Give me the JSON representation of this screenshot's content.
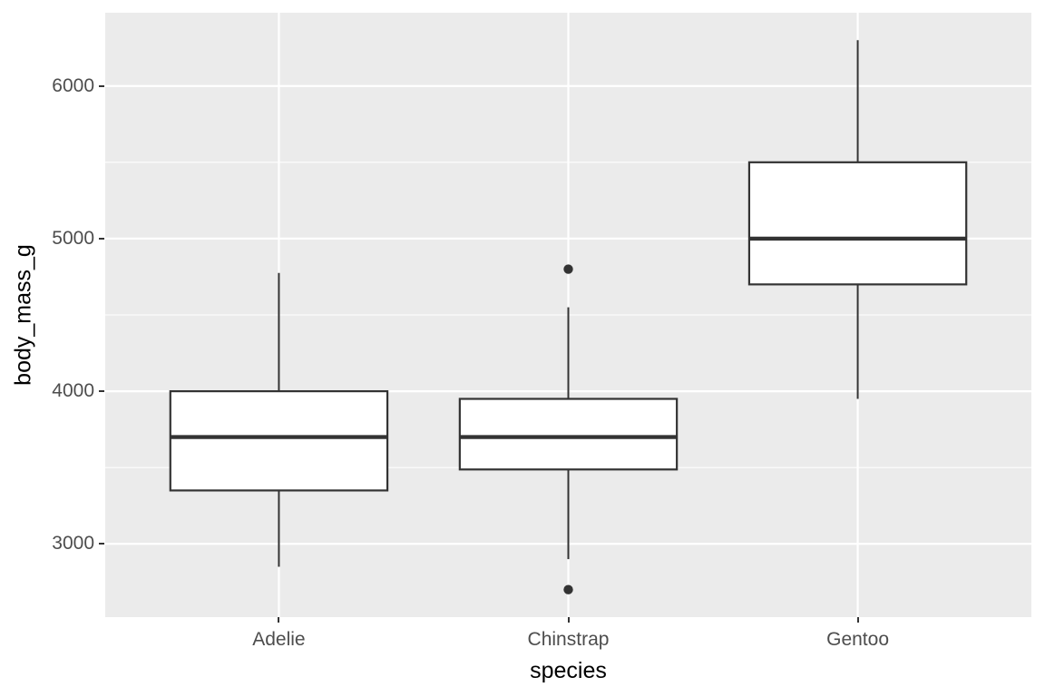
{
  "chart_data": {
    "type": "boxplot",
    "title": "",
    "xlabel": "species",
    "ylabel": "body_mass_g",
    "categories": [
      "Adelie",
      "Chinstrap",
      "Gentoo"
    ],
    "y_major_ticks": [
      3000,
      4000,
      5000,
      6000
    ],
    "y_minor_ticks": [
      2500,
      3500,
      4500,
      5500
    ],
    "ylim": [
      2520,
      6480
    ],
    "legend": "none",
    "grid": "on",
    "series": [
      {
        "category": "Adelie",
        "whisker_low": 2850,
        "q1": 3350,
        "median": 3700,
        "q3": 4000,
        "whisker_high": 4775,
        "outliers": []
      },
      {
        "category": "Chinstrap",
        "whisker_low": 2900,
        "q1": 3487.5,
        "median": 3700,
        "q3": 3950,
        "whisker_high": 4550,
        "outliers": [
          2700,
          4800
        ]
      },
      {
        "category": "Gentoo",
        "whisker_low": 3950,
        "q1": 4700,
        "median": 5000,
        "q3": 5500,
        "whisker_high": 6300,
        "outliers": []
      }
    ],
    "style": {
      "panel_bg": "#EBEBEB",
      "grid_color": "#FFFFFF",
      "box_stroke": "#333333",
      "box_fill": "#FFFFFF",
      "outlier_color": "#333333",
      "tick_label_color": "#4D4D4D",
      "axis_title_color": "#000000"
    }
  }
}
